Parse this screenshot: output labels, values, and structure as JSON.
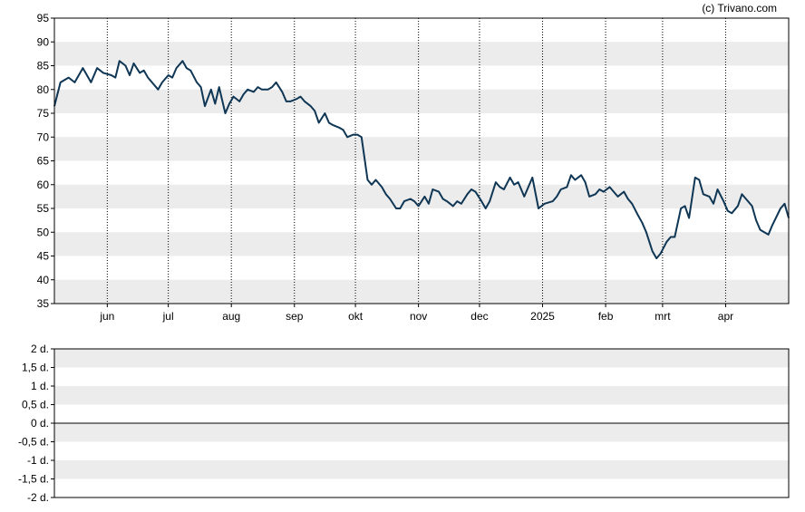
{
  "credit": "(c) Trivano.com",
  "colors": {
    "line": "#0f3654",
    "band": "#ececec",
    "axis": "#000000",
    "grid_dotted": "#000000"
  },
  "chart_data": [
    {
      "type": "line",
      "title": "",
      "xlabel": "",
      "ylabel": "",
      "ylim": [
        35,
        95
      ],
      "y_ticks": [
        "95",
        "90",
        "85",
        "80",
        "75",
        "70",
        "65",
        "60",
        "55",
        "50",
        "45",
        "40",
        "35"
      ],
      "x_tick_labels": [
        "jun",
        "jul",
        "aug",
        "sep",
        "okt",
        "nov",
        "dec",
        "2025",
        "feb",
        "mrt",
        "apr"
      ],
      "grid": "alternating horizontal bands, dotted vertical lines at month ticks",
      "series": [
        {
          "x": [
            "2024-05-06",
            "2024-05-09",
            "2024-05-13",
            "2024-05-16",
            "2024-05-20",
            "2024-05-22",
            "2024-05-24",
            "2024-05-27",
            "2024-05-30",
            "2024-06-03",
            "2024-06-05",
            "2024-06-07",
            "2024-06-10",
            "2024-06-12",
            "2024-06-14",
            "2024-06-17",
            "2024-06-19",
            "2024-06-21",
            "2024-06-24",
            "2024-06-26",
            "2024-06-28",
            "2024-07-01",
            "2024-07-03",
            "2024-07-05",
            "2024-07-08",
            "2024-07-10",
            "2024-07-12",
            "2024-07-15",
            "2024-07-17",
            "2024-07-19",
            "2024-07-22",
            "2024-07-24",
            "2024-07-26",
            "2024-07-29",
            "2024-07-31",
            "2024-08-02",
            "2024-08-05",
            "2024-08-07",
            "2024-08-09",
            "2024-08-12",
            "2024-08-14",
            "2024-08-16",
            "2024-08-19",
            "2024-08-21",
            "2024-08-23",
            "2024-08-26",
            "2024-08-28",
            "2024-08-30",
            "2024-09-02",
            "2024-09-04",
            "2024-09-06",
            "2024-09-09",
            "2024-09-11",
            "2024-09-13",
            "2024-09-16",
            "2024-09-18",
            "2024-09-20",
            "2024-09-23",
            "2024-09-25",
            "2024-09-27",
            "2024-09-30",
            "2024-10-02",
            "2024-10-04",
            "2024-10-07",
            "2024-10-09",
            "2024-10-11",
            "2024-10-14",
            "2024-10-16",
            "2024-10-18",
            "2024-10-21",
            "2024-10-23",
            "2024-10-25",
            "2024-10-28",
            "2024-10-30",
            "2024-11-01",
            "2024-11-04",
            "2024-11-06",
            "2024-11-08",
            "2024-11-11",
            "2024-11-13",
            "2024-11-15",
            "2024-11-18",
            "2024-11-20",
            "2024-11-22",
            "2024-11-25",
            "2024-11-27",
            "2024-11-29",
            "2024-12-02",
            "2024-12-04",
            "2024-12-06",
            "2024-12-09",
            "2024-12-11",
            "2024-12-13",
            "2024-12-16",
            "2024-12-18",
            "2024-12-20",
            "2024-12-23",
            "2024-12-27",
            "2024-12-30",
            "2025-01-02",
            "2025-01-06",
            "2025-01-08",
            "2025-01-10",
            "2025-01-13",
            "2025-01-15",
            "2025-01-17",
            "2025-01-20",
            "2025-01-22",
            "2025-01-24",
            "2025-01-27",
            "2025-01-29",
            "2025-01-31",
            "2025-02-03",
            "2025-02-05",
            "2025-02-07",
            "2025-02-10",
            "2025-02-12",
            "2025-02-14",
            "2025-02-17",
            "2025-02-19",
            "2025-02-21",
            "2025-02-24",
            "2025-02-26",
            "2025-02-28",
            "2025-03-03",
            "2025-03-05",
            "2025-03-07",
            "2025-03-10",
            "2025-03-12",
            "2025-03-14",
            "2025-03-17",
            "2025-03-19",
            "2025-03-21",
            "2025-03-24",
            "2025-03-26",
            "2025-03-28",
            "2025-03-31",
            "2025-04-02",
            "2025-04-04",
            "2025-04-07",
            "2025-04-09",
            "2025-04-11",
            "2025-04-14",
            "2025-04-16",
            "2025-04-18",
            "2025-04-22",
            "2025-04-24",
            "2025-04-28",
            "2025-04-30",
            "2025-05-02"
          ],
          "y": [
            76.5,
            81.5,
            82.5,
            81.5,
            84.5,
            83.0,
            81.5,
            84.5,
            83.5,
            83.0,
            82.5,
            86.0,
            85.0,
            83.0,
            85.5,
            83.5,
            84.0,
            82.5,
            81.0,
            80.0,
            81.5,
            83.0,
            82.5,
            84.5,
            86.0,
            84.5,
            84.0,
            81.5,
            80.5,
            76.5,
            80.0,
            77.0,
            80.5,
            75.0,
            77.0,
            78.5,
            77.5,
            79.0,
            80.0,
            79.5,
            80.5,
            80.0,
            80.0,
            80.5,
            81.5,
            79.5,
            77.5,
            77.5,
            78.0,
            78.5,
            77.5,
            76.5,
            75.5,
            73.0,
            75.0,
            73.0,
            72.5,
            72.0,
            71.5,
            70.0,
            70.5,
            70.5,
            70.0,
            61.0,
            60.0,
            61.0,
            59.5,
            58.0,
            57.0,
            55.0,
            55.0,
            56.5,
            57.0,
            56.5,
            55.5,
            57.5,
            56.0,
            59.0,
            58.5,
            57.0,
            56.5,
            55.5,
            56.5,
            56.0,
            58.0,
            59.0,
            58.5,
            56.5,
            55.0,
            56.5,
            60.5,
            59.5,
            59.0,
            61.5,
            60.0,
            60.5,
            57.5,
            61.5,
            55.0,
            56.0,
            56.5,
            57.5,
            59.0,
            59.5,
            62.0,
            61.0,
            62.0,
            60.5,
            57.5,
            58.0,
            59.0,
            58.5,
            59.5,
            58.5,
            57.5,
            58.5,
            57.0,
            56.0,
            53.5,
            52.0,
            50.0,
            46.0,
            44.5,
            45.5,
            48.0,
            49.0,
            49.0,
            55.0,
            55.5,
            53.0,
            61.5,
            61.0,
            58.0,
            57.5,
            56.0,
            59.0,
            56.5,
            54.5,
            54.0,
            55.5,
            58.0,
            57.0,
            55.5,
            52.5,
            50.5,
            49.5,
            51.5,
            55.0,
            56.0,
            53.0
          ]
        }
      ]
    },
    {
      "type": "line",
      "title": "",
      "xlabel": "",
      "ylabel": "",
      "ylim": [
        -2,
        2
      ],
      "y_ticks": [
        "2 d.",
        "1,5 d.",
        "1 d.",
        "0,5 d.",
        "0 d.",
        "-0,5 d.",
        "-1 d.",
        "-1,5 d.",
        "-2 d."
      ],
      "series": []
    }
  ]
}
